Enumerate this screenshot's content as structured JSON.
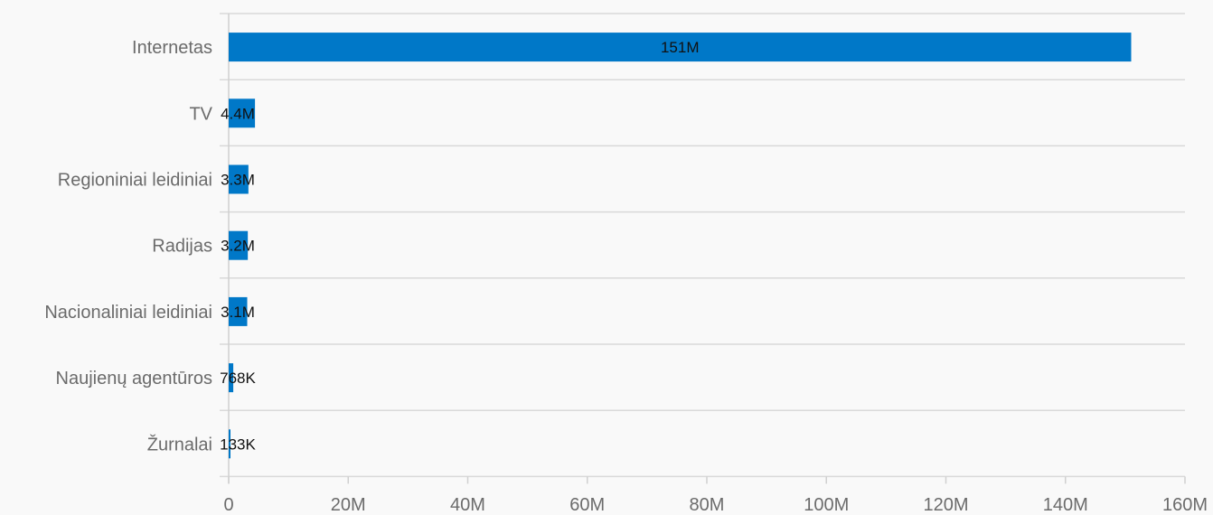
{
  "chart_data": {
    "type": "bar",
    "orientation": "horizontal",
    "categories": [
      "Internetas",
      "TV",
      "Regioniniai leidiniai",
      "Radijas",
      "Nacionaliniai leidiniai",
      "Naujienų agentūros",
      "Žurnalai"
    ],
    "values": [
      151000000,
      4400000,
      3300000,
      3200000,
      3100000,
      768000,
      133000
    ],
    "data_labels": [
      "151M",
      "4.4M",
      "3.3M",
      "3.2M",
      "3.1M",
      "768K",
      "133K"
    ],
    "xlim": [
      0,
      160000000
    ],
    "x_ticks": [
      0,
      20000000,
      40000000,
      60000000,
      80000000,
      100000000,
      120000000,
      140000000,
      160000000
    ],
    "x_tick_labels": [
      "0",
      "20M",
      "40M",
      "60M",
      "80M",
      "100M",
      "120M",
      "140M",
      "160M"
    ],
    "title": "",
    "xlabel": "",
    "ylabel": "",
    "grid": true,
    "legend": "none",
    "bar_color": "#0078c8"
  }
}
